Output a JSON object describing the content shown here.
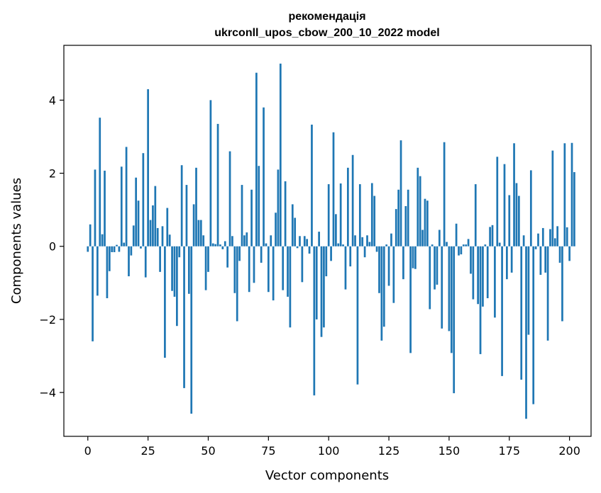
{
  "chart_data": {
    "type": "bar",
    "title": "рекомендація",
    "subtitle": "ukrconll_upos_cbow_200_10_2022 model",
    "xlabel": "Vector components",
    "ylabel": "Components values",
    "xlim": [
      -9.95,
      208.95
    ],
    "ylim": [
      -5.2,
      5.5
    ],
    "xticks": [
      0,
      25,
      50,
      75,
      100,
      125,
      150,
      175,
      200
    ],
    "yticks": [
      -4,
      -2,
      0,
      2,
      4
    ],
    "grid": false,
    "bar_color": "#1f77b4",
    "values": [
      -0.15,
      0.6,
      -2.6,
      2.1,
      -1.35,
      3.52,
      0.33,
      2.07,
      -1.42,
      -0.68,
      -0.16,
      -0.16,
      0.04,
      -0.15,
      2.18,
      0.1,
      2.72,
      -0.82,
      -0.25,
      0.57,
      1.88,
      1.25,
      -0.06,
      2.55,
      -0.85,
      4.3,
      0.72,
      1.12,
      1.65,
      0.5,
      -0.7,
      0.55,
      -3.05,
      1.05,
      0.32,
      -1.22,
      -1.38,
      -2.18,
      -0.3,
      2.22,
      -3.88,
      1.68,
      -1.3,
      -4.58,
      1.15,
      2.15,
      0.72,
      0.72,
      0.3,
      -1.2,
      -0.7,
      4.0,
      0.08,
      0.06,
      3.35,
      0.05,
      -0.08,
      0.14,
      -0.58,
      2.6,
      0.28,
      -1.28,
      -2.05,
      -0.4,
      1.68,
      0.3,
      0.38,
      -1.25,
      1.55,
      -1.0,
      4.75,
      2.2,
      -0.45,
      3.8,
      0.08,
      -1.25,
      0.3,
      -1.48,
      0.92,
      2.1,
      5.0,
      -1.2,
      1.78,
      -1.38,
      -2.22,
      1.15,
      0.78,
      -0.05,
      0.28,
      -0.98,
      0.28,
      0.2,
      -0.2,
      3.33,
      -4.08,
      -2.0,
      0.4,
      -2.48,
      -2.22,
      -0.82,
      1.7,
      -0.4,
      3.12,
      0.88,
      0.08,
      1.72,
      0.05,
      -1.18,
      2.15,
      -0.55,
      2.5,
      0.3,
      -3.78,
      1.7,
      0.25,
      -0.3,
      0.3,
      0.12,
      1.73,
      1.38,
      -0.15,
      -1.28,
      -2.58,
      -2.2,
      0.05,
      -1.08,
      0.35,
      -1.55,
      1.02,
      1.55,
      2.9,
      -0.9,
      1.1,
      1.55,
      -2.92,
      -0.6,
      -0.62,
      2.15,
      1.92,
      0.45,
      1.3,
      1.25,
      -1.72,
      0.05,
      -1.18,
      -1.05,
      0.45,
      -2.25,
      2.85,
      0.12,
      -2.32,
      -2.92,
      -4.02,
      0.62,
      -0.25,
      -0.22,
      0.05,
      0.05,
      0.2,
      -0.75,
      -1.45,
      1.7,
      -1.58,
      -2.95,
      -1.65,
      0.05,
      -1.42,
      0.53,
      0.58,
      -1.95,
      2.45,
      0.1,
      -3.55,
      2.25,
      -0.9,
      1.4,
      -0.72,
      2.82,
      1.73,
      1.38,
      -3.65,
      0.3,
      -4.72,
      -2.42,
      2.08,
      -4.32,
      -0.08,
      0.35,
      -0.78,
      0.5,
      -0.72,
      -2.58,
      0.47,
      2.62,
      0.22,
      0.55,
      -0.45,
      -2.05,
      2.82,
      0.52,
      -0.4,
      2.83,
      2.03
    ]
  }
}
